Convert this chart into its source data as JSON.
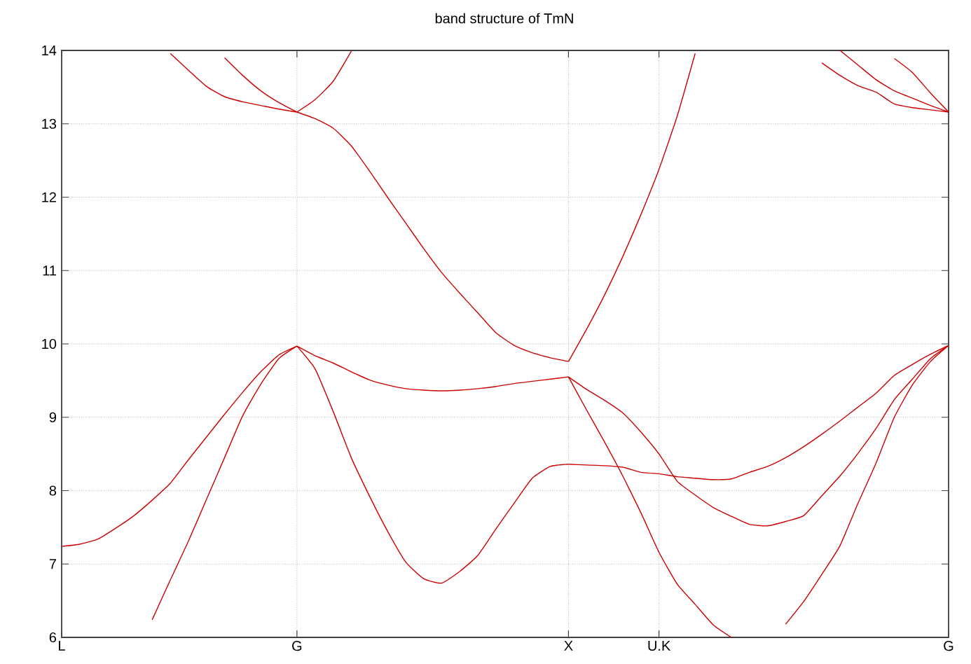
{
  "chart_data": {
    "type": "line",
    "title": "band structure of TmN",
    "categories": [
      "L",
      null,
      null,
      null,
      null,
      null,
      null,
      null,
      null,
      null,
      null,
      null,
      null,
      "G",
      null,
      null,
      null,
      null,
      null,
      null,
      null,
      null,
      null,
      null,
      null,
      null,
      null,
      null,
      "X",
      null,
      null,
      null,
      null,
      "U.K",
      null,
      null,
      null,
      null,
      null,
      null,
      null,
      null,
      null,
      null,
      null,
      null,
      null,
      null,
      null,
      "G"
    ],
    "ylim": [
      6,
      14
    ],
    "yticks": [
      6,
      7,
      8,
      9,
      10,
      11,
      12,
      13,
      14
    ],
    "grid": true,
    "series": [
      {
        "color": "#cc0000",
        "values": [
          7.24,
          7.27,
          7.34,
          7.49,
          7.66,
          7.87,
          8.1,
          8.42,
          8.73,
          9.04,
          9.34,
          9.62,
          9.85,
          9.97,
          null,
          null,
          null,
          null,
          null,
          null,
          null,
          null,
          null,
          null,
          null,
          null,
          null,
          null,
          null,
          null,
          null,
          null,
          null,
          null,
          null,
          null,
          null,
          null,
          null,
          null,
          null,
          null,
          null,
          null,
          null,
          null,
          null,
          null,
          null,
          null
        ]
      },
      {
        "color": "#cc0000",
        "values": [
          null,
          null,
          null,
          null,
          null,
          6.24,
          6.78,
          7.31,
          7.88,
          8.45,
          9.02,
          9.45,
          9.8,
          9.97,
          null,
          null,
          null,
          null,
          null,
          null,
          null,
          null,
          null,
          null,
          null,
          null,
          null,
          null,
          null,
          null,
          null,
          null,
          null,
          null,
          null,
          null,
          null,
          null,
          null,
          null,
          null,
          null,
          null,
          null,
          null,
          null,
          null,
          null,
          null,
          null
        ]
      },
      {
        "color": "#cc0000",
        "values": [
          null,
          null,
          null,
          null,
          null,
          null,
          13.96,
          13.73,
          13.51,
          13.37,
          13.3,
          13.25,
          13.2,
          13.16,
          null,
          null,
          null,
          null,
          null,
          null,
          null,
          null,
          null,
          null,
          null,
          null,
          null,
          null,
          null,
          null,
          null,
          null,
          null,
          null,
          null,
          null,
          null,
          null,
          null,
          null,
          null,
          null,
          null,
          null,
          null,
          null,
          null,
          null,
          null,
          null
        ]
      },
      {
        "color": "#cc0000",
        "values": [
          null,
          null,
          null,
          null,
          null,
          null,
          null,
          null,
          null,
          13.9,
          13.66,
          13.45,
          13.29,
          13.16,
          null,
          null,
          null,
          null,
          null,
          null,
          null,
          null,
          null,
          null,
          null,
          null,
          null,
          null,
          null,
          null,
          null,
          null,
          null,
          null,
          null,
          null,
          null,
          null,
          null,
          null,
          null,
          null,
          null,
          null,
          null,
          null,
          null,
          null,
          null,
          null
        ]
      },
      {
        "color": "#cc0000",
        "values": [
          null,
          null,
          null,
          null,
          null,
          null,
          null,
          null,
          null,
          null,
          null,
          null,
          null,
          13.16,
          13.33,
          13.58,
          13.99,
          null,
          null,
          null,
          null,
          null,
          null,
          null,
          null,
          null,
          null,
          null,
          null,
          null,
          null,
          null,
          null,
          null,
          null,
          null,
          null,
          null,
          null,
          null,
          null,
          null,
          null,
          null,
          null,
          null,
          null,
          null,
          null,
          null
        ]
      },
      {
        "color": "#cc0000",
        "values": [
          null,
          null,
          null,
          null,
          null,
          null,
          null,
          null,
          null,
          null,
          null,
          null,
          null,
          9.97,
          9.66,
          9.08,
          8.45,
          7.93,
          7.45,
          7.03,
          6.8,
          6.74,
          6.9,
          7.12,
          7.48,
          7.83,
          8.17,
          8.33,
          8.36,
          null,
          null,
          null,
          null,
          null,
          null,
          null,
          null,
          null,
          null,
          null,
          null,
          null,
          null,
          null,
          null,
          null,
          null,
          null,
          null,
          null
        ]
      },
      {
        "color": "#cc0000",
        "values": [
          null,
          null,
          null,
          null,
          null,
          null,
          null,
          null,
          null,
          null,
          null,
          null,
          null,
          9.97,
          9.84,
          9.74,
          9.62,
          9.51,
          9.44,
          9.39,
          9.37,
          9.36,
          9.37,
          9.39,
          9.42,
          9.46,
          9.49,
          9.52,
          9.55,
          null,
          null,
          null,
          null,
          null,
          null,
          null,
          null,
          null,
          null,
          null,
          null,
          null,
          null,
          null,
          null,
          null,
          null,
          null,
          null,
          null
        ]
      },
      {
        "color": "#cc0000",
        "values": [
          null,
          null,
          null,
          null,
          null,
          null,
          null,
          null,
          null,
          null,
          null,
          null,
          null,
          13.16,
          13.07,
          12.94,
          12.7,
          12.36,
          12.0,
          11.65,
          11.3,
          10.97,
          10.69,
          10.42,
          10.15,
          9.98,
          9.88,
          9.81,
          9.76,
          null,
          null,
          null,
          null,
          null,
          null,
          null,
          null,
          null,
          null,
          null,
          null,
          null,
          null,
          null,
          null,
          null,
          null,
          null,
          null,
          null
        ]
      },
      {
        "color": "#cc0000",
        "values": [
          null,
          null,
          null,
          null,
          null,
          null,
          null,
          null,
          null,
          null,
          null,
          null,
          null,
          null,
          null,
          null,
          null,
          null,
          null,
          null,
          null,
          null,
          null,
          null,
          null,
          null,
          null,
          null,
          9.76,
          10.2,
          10.67,
          11.19,
          11.76,
          12.38,
          13.1,
          13.96,
          null,
          null,
          null,
          null,
          null,
          null,
          null,
          null,
          null,
          null,
          null,
          null,
          null,
          null
        ]
      },
      {
        "color": "#cc0000",
        "values": [
          null,
          null,
          null,
          null,
          null,
          null,
          null,
          null,
          null,
          null,
          null,
          null,
          null,
          null,
          null,
          null,
          null,
          null,
          null,
          null,
          null,
          null,
          null,
          null,
          null,
          null,
          null,
          null,
          8.36,
          8.35,
          8.34,
          8.32,
          8.25,
          8.23,
          8.19,
          8.17,
          8.15,
          8.16,
          8.25,
          8.33,
          8.45,
          8.6,
          8.77,
          8.95,
          9.14,
          9.33,
          9.57,
          9.72,
          9.86,
          9.98
        ]
      },
      {
        "color": "#cc0000",
        "values": [
          null,
          null,
          null,
          null,
          null,
          null,
          null,
          null,
          null,
          null,
          null,
          null,
          null,
          null,
          null,
          null,
          null,
          null,
          null,
          null,
          null,
          null,
          null,
          null,
          null,
          null,
          null,
          null,
          9.55,
          9.38,
          9.23,
          9.06,
          8.8,
          8.5,
          8.13,
          7.94,
          7.77,
          7.65,
          7.54,
          7.52,
          7.58,
          7.66,
          7.93,
          8.2,
          8.51,
          8.85,
          9.24,
          9.52,
          9.8,
          9.98
        ]
      },
      {
        "color": "#cc0000",
        "values": [
          null,
          null,
          null,
          null,
          null,
          null,
          null,
          null,
          null,
          null,
          null,
          null,
          null,
          null,
          null,
          null,
          null,
          null,
          null,
          null,
          null,
          null,
          null,
          null,
          null,
          null,
          null,
          null,
          9.55,
          9.1,
          8.66,
          8.2,
          7.7,
          7.16,
          6.73,
          6.45,
          6.17,
          6.0,
          null,
          null,
          null,
          null,
          null,
          null,
          null,
          null,
          null,
          null,
          null,
          null
        ]
      },
      {
        "color": "#cc0000",
        "values": [
          null,
          null,
          null,
          null,
          null,
          null,
          null,
          null,
          null,
          null,
          null,
          null,
          null,
          null,
          null,
          null,
          null,
          null,
          null,
          null,
          null,
          null,
          null,
          null,
          null,
          null,
          null,
          null,
          null,
          null,
          null,
          null,
          null,
          null,
          null,
          null,
          null,
          null,
          null,
          null,
          6.18,
          6.49,
          6.86,
          7.25,
          7.83,
          8.38,
          9.0,
          9.44,
          9.76,
          9.98
        ]
      },
      {
        "color": "#cc0000",
        "values": [
          null,
          null,
          null,
          null,
          null,
          null,
          null,
          null,
          null,
          null,
          null,
          null,
          null,
          null,
          null,
          null,
          null,
          null,
          null,
          null,
          null,
          null,
          null,
          null,
          null,
          null,
          null,
          null,
          null,
          null,
          null,
          null,
          null,
          null,
          null,
          null,
          null,
          null,
          null,
          null,
          null,
          null,
          13.83,
          13.66,
          13.52,
          13.43,
          13.27,
          13.22,
          13.19,
          13.16
        ]
      },
      {
        "color": "#cc0000",
        "values": [
          null,
          null,
          null,
          null,
          null,
          null,
          null,
          null,
          null,
          null,
          null,
          null,
          null,
          null,
          null,
          null,
          null,
          null,
          null,
          null,
          null,
          null,
          null,
          null,
          null,
          null,
          null,
          null,
          null,
          null,
          null,
          null,
          null,
          null,
          null,
          null,
          null,
          null,
          null,
          null,
          null,
          null,
          null,
          14.0,
          13.8,
          13.6,
          13.45,
          13.35,
          13.25,
          13.16
        ]
      },
      {
        "color": "#cc0000",
        "values": [
          null,
          null,
          null,
          null,
          null,
          null,
          null,
          null,
          null,
          null,
          null,
          null,
          null,
          null,
          null,
          null,
          null,
          null,
          null,
          null,
          null,
          null,
          null,
          null,
          null,
          null,
          null,
          null,
          null,
          null,
          null,
          null,
          null,
          null,
          null,
          null,
          null,
          null,
          null,
          null,
          null,
          null,
          null,
          null,
          null,
          null,
          13.89,
          13.7,
          13.42,
          13.16
        ]
      }
    ]
  }
}
